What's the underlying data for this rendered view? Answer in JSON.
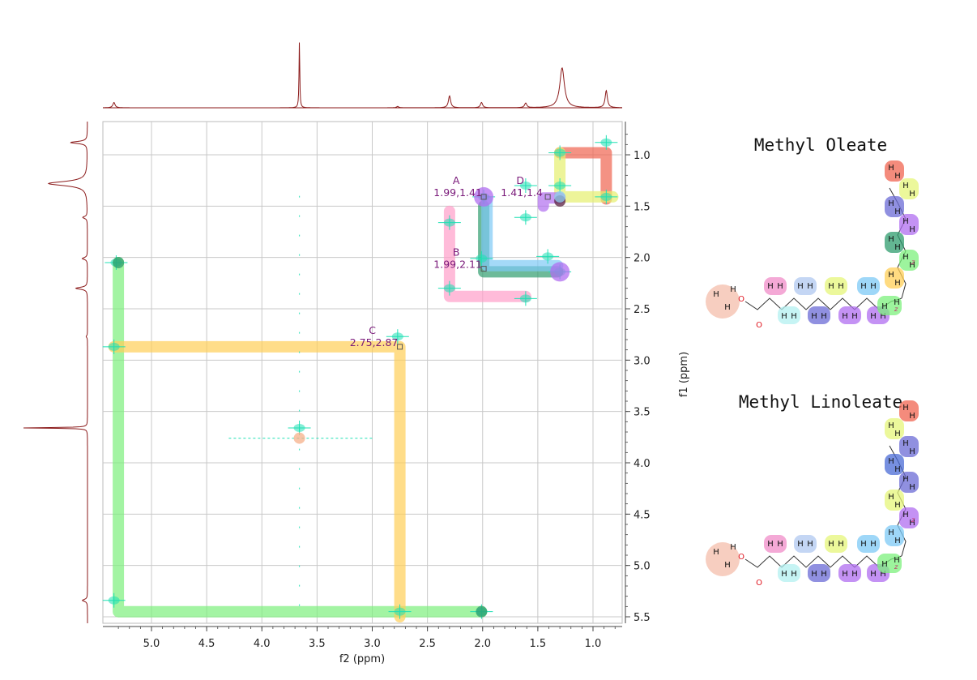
{
  "chart_data": {
    "type": "scatter",
    "subtype": "2D NMR COSY contour spectrum with highlighted spin systems",
    "xlabel": "f2 (ppm)",
    "ylabel": "f1 (ppm)",
    "xlim": [
      5.4,
      0.75
    ],
    "ylim": [
      0.7,
      5.55
    ],
    "x_reversed": true,
    "y_increasing_downward": true,
    "grid": true,
    "x_ticks": [
      "5.0",
      "4.5",
      "4.0",
      "3.5",
      "3.0",
      "2.5",
      "2.0",
      "1.5",
      "1.0"
    ],
    "y_ticks": [
      "1.0",
      "1.5",
      "2.0",
      "2.5",
      "3.0",
      "3.5",
      "4.0",
      "4.5",
      "5.0",
      "5.5"
    ],
    "x_tick_values": [
      5.0,
      4.5,
      4.0,
      3.5,
      3.0,
      2.5,
      2.0,
      1.5,
      1.0
    ],
    "y_tick_values": [
      1.0,
      1.5,
      2.0,
      2.5,
      3.0,
      3.5,
      4.0,
      4.5,
      5.0,
      5.5
    ],
    "projection_peaks_ppm": [
      5.34,
      3.66,
      2.77,
      2.3,
      2.01,
      1.61,
      1.28,
      0.88
    ],
    "projection_heights": [
      0.08,
      1.0,
      0.02,
      0.18,
      0.08,
      0.07,
      0.6,
      0.26
    ],
    "diagonal_peaks": [
      {
        "x": 5.34,
        "y": 5.34
      },
      {
        "x": 3.66,
        "y": 3.66
      },
      {
        "x": 2.77,
        "y": 2.77
      },
      {
        "x": 2.3,
        "y": 2.3
      },
      {
        "x": 2.01,
        "y": 2.01
      },
      {
        "x": 1.61,
        "y": 1.61
      },
      {
        "x": 1.3,
        "y": 1.3
      },
      {
        "x": 0.88,
        "y": 0.88
      }
    ],
    "cross_peaks": [
      {
        "x": 5.32,
        "y": 2.05
      },
      {
        "x": 2.01,
        "y": 5.45
      },
      {
        "x": 5.34,
        "y": 2.87
      },
      {
        "x": 2.75,
        "y": 5.45
      },
      {
        "x": 2.3,
        "y": 1.66
      },
      {
        "x": 1.61,
        "y": 2.4
      },
      {
        "x": 1.99,
        "y": 1.41
      },
      {
        "x": 1.41,
        "y": 1.99
      },
      {
        "x": 1.3,
        "y": 0.98
      },
      {
        "x": 0.88,
        "y": 1.41
      },
      {
        "x": 1.61,
        "y": 1.3
      },
      {
        "x": 1.3,
        "y": 2.14
      }
    ],
    "annotations": [
      {
        "letter": "A",
        "coords": "1.99,1.41",
        "x": 1.99,
        "y": 1.41
      },
      {
        "letter": "B",
        "coords": "1.99,2.11",
        "x": 1.99,
        "y": 2.11
      },
      {
        "letter": "C",
        "coords": "2.75,2.87",
        "x": 2.75,
        "y": 2.87
      },
      {
        "letter": "D",
        "coords": "1.41,1.4",
        "x": 1.41,
        "y": 1.41
      }
    ],
    "highlight_paths": [
      {
        "color": "#7cf07c",
        "points": [
          [
            5.3,
            2.05
          ],
          [
            5.3,
            5.45
          ],
          [
            2.01,
            5.45
          ]
        ]
      },
      {
        "color": "#ffcf57",
        "points": [
          [
            5.34,
            2.87
          ],
          [
            2.75,
            2.87
          ],
          [
            2.75,
            5.5
          ]
        ]
      },
      {
        "color": "#ff9ec9",
        "points": [
          [
            2.3,
            1.55
          ],
          [
            2.3,
            2.38
          ],
          [
            1.61,
            2.38
          ]
        ]
      },
      {
        "color": "#2f9c6e",
        "points": [
          [
            1.99,
            1.5
          ],
          [
            1.99,
            2.14
          ],
          [
            1.32,
            2.14
          ]
        ]
      },
      {
        "color": "#7ec9f5",
        "points": [
          [
            1.96,
            1.45
          ],
          [
            1.96,
            2.08
          ],
          [
            1.32,
            2.08
          ]
        ]
      },
      {
        "color": "#f06450",
        "points": [
          [
            0.88,
            1.43
          ],
          [
            0.88,
            0.98
          ],
          [
            1.3,
            0.98
          ]
        ]
      },
      {
        "color": "#e6f06e",
        "points": [
          [
            1.3,
            0.98
          ],
          [
            1.3,
            1.41
          ],
          [
            0.82,
            1.41
          ]
        ]
      },
      {
        "color": "#b06ef0",
        "points": [
          [
            1.45,
            1.5
          ],
          [
            1.45,
            1.42
          ],
          [
            1.3,
            1.42
          ]
        ]
      }
    ]
  },
  "molecules": {
    "oleate_title": "Methyl Oleate",
    "linoleate_title": "Methyl Linoleate",
    "atom_h": "H",
    "atom_o": "O",
    "cis_label": "z"
  },
  "colors": {
    "spectrum_line": "#8b1a1a",
    "contour": "#1fe0b4",
    "grid": "#c8c8c8",
    "annotation_text": "#7a1a7a"
  }
}
